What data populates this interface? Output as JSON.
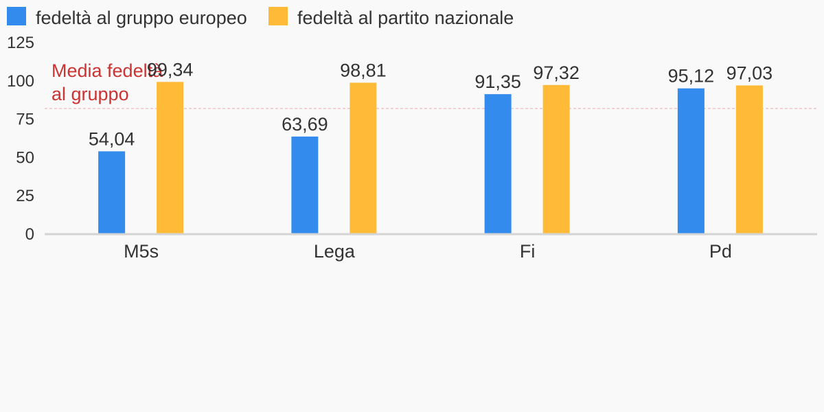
{
  "chart_data": {
    "type": "bar",
    "categories": [
      "M5s",
      "Lega",
      "Fi",
      "Pd"
    ],
    "series": [
      {
        "name": "fedeltà al gruppo europeo",
        "values": [
          54.04,
          63.69,
          91.35,
          95.12
        ],
        "labels": [
          "54,04",
          "63,69",
          "91,35",
          "95,12"
        ],
        "color": "#338bed"
      },
      {
        "name": "fedeltà al partito nazionale",
        "values": [
          99.34,
          98.81,
          97.32,
          97.03
        ],
        "labels": [
          "99,34",
          "98,81",
          "97,32",
          "97,03"
        ],
        "color": "#ffbb38"
      }
    ],
    "ylim": [
      0,
      125
    ],
    "yticks": [
      0,
      25,
      50,
      75,
      100,
      125
    ],
    "ytick_labels": [
      "0",
      "25",
      "50",
      "75",
      "100",
      "125"
    ],
    "legend_position": "top-left",
    "grid": false,
    "reference_line": {
      "value": 82,
      "label_lines": [
        "Media fedeltà",
        "al gruppo"
      ],
      "color": "#cc3333",
      "line_color": "#f0a8a8"
    },
    "axis_color": "#d4d4d4"
  }
}
